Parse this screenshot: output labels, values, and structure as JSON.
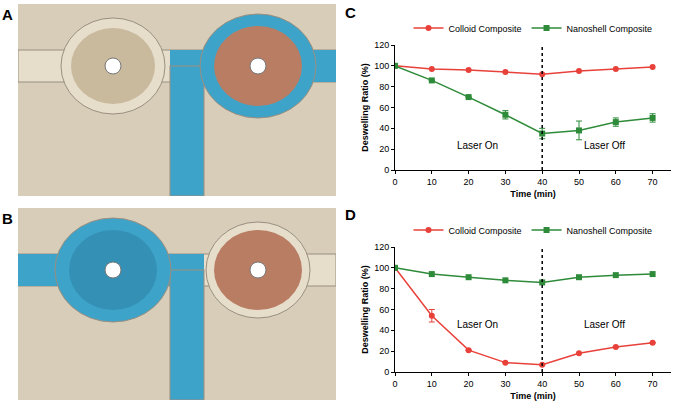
{
  "photos": [
    {
      "panel": "A"
    },
    {
      "panel": "B"
    }
  ],
  "chart_data": [
    {
      "panel": "C",
      "type": "line",
      "x": [
        0,
        10,
        20,
        30,
        40,
        50,
        60,
        70
      ],
      "xlim": [
        0,
        75
      ],
      "xticks": [
        0,
        10,
        20,
        30,
        40,
        50,
        60,
        70
      ],
      "ylim": [
        0,
        120
      ],
      "yticks": [
        0,
        20,
        40,
        60,
        80,
        100,
        120
      ],
      "xlabel": "Time (min)",
      "ylabel": "Deswelling Ratio (%)",
      "annotations": [
        "Laser On",
        "Laser Off"
      ],
      "vline": 40,
      "legend": "top",
      "grid": false,
      "series": [
        {
          "name": "Colloid Composite",
          "color": "#e8413a",
          "marker": "circle",
          "values": [
            100,
            97,
            96,
            94,
            92,
            95,
            97,
            99
          ],
          "errors": [
            null,
            null,
            null,
            null,
            null,
            null,
            null,
            null
          ]
        },
        {
          "name": "Nanoshell Composite",
          "color": "#2e8b3a",
          "marker": "square",
          "values": [
            100,
            86,
            70,
            53,
            35,
            38,
            46,
            50
          ],
          "errors": [
            null,
            null,
            null,
            4,
            5,
            9,
            4,
            4
          ]
        }
      ]
    },
    {
      "panel": "D",
      "type": "line",
      "x": [
        0,
        10,
        20,
        30,
        40,
        50,
        60,
        70
      ],
      "xlim": [
        0,
        75
      ],
      "xticks": [
        0,
        10,
        20,
        30,
        40,
        50,
        60,
        70
      ],
      "ylim": [
        0,
        120
      ],
      "yticks": [
        0,
        20,
        40,
        60,
        80,
        100,
        120
      ],
      "xlabel": "Time (min)",
      "ylabel": "Deswelling Ratio (%)",
      "annotations": [
        "Laser On",
        "Laser Off"
      ],
      "vline": 40,
      "legend": "top",
      "grid": false,
      "series": [
        {
          "name": "Colloid Composite",
          "color": "#e8413a",
          "marker": "circle",
          "values": [
            100,
            54,
            21,
            9,
            7,
            18,
            24,
            28
          ],
          "errors": [
            null,
            6,
            null,
            null,
            null,
            null,
            null,
            null
          ]
        },
        {
          "name": "Nanoshell Composite",
          "color": "#2e8b3a",
          "marker": "square",
          "values": [
            100,
            94,
            91,
            88,
            86,
            91,
            93,
            94
          ],
          "errors": [
            null,
            null,
            null,
            null,
            null,
            null,
            null,
            null
          ]
        }
      ]
    }
  ]
}
